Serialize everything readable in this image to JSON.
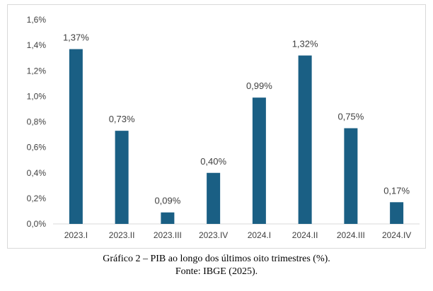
{
  "caption": {
    "title": "Gráfico 2 – PIB ao longo dos últimos oito trimestres (%).",
    "source": "Fonte: IBGE (2025)."
  },
  "chart_data": {
    "type": "bar",
    "categories": [
      "2023.I",
      "2023.II",
      "2023.III",
      "2023.IV",
      "2024.I",
      "2024.II",
      "2024.III",
      "2024.IV"
    ],
    "values": [
      1.37,
      0.73,
      0.09,
      0.4,
      0.99,
      1.32,
      0.75,
      0.17
    ],
    "data_labels": [
      "1,37%",
      "0,73%",
      "0,09%",
      "0,40%",
      "0,99%",
      "1,32%",
      "0,75%",
      "0,17%"
    ],
    "ylim": [
      0,
      1.6
    ],
    "yticks": [
      0,
      0.2,
      0.4,
      0.6,
      0.8,
      1.0,
      1.2,
      1.4,
      1.6
    ],
    "ytick_labels": [
      "0,0%",
      "0,2%",
      "0,4%",
      "0,6%",
      "0,8%",
      "1,0%",
      "1,2%",
      "1,4%",
      "1,6%"
    ],
    "title": "",
    "xlabel": "",
    "ylabel": "",
    "grid": false,
    "legend": "none",
    "bar_color": "#1a5f84",
    "axis_color": "#d9d9d9",
    "text_color": "#404040"
  }
}
